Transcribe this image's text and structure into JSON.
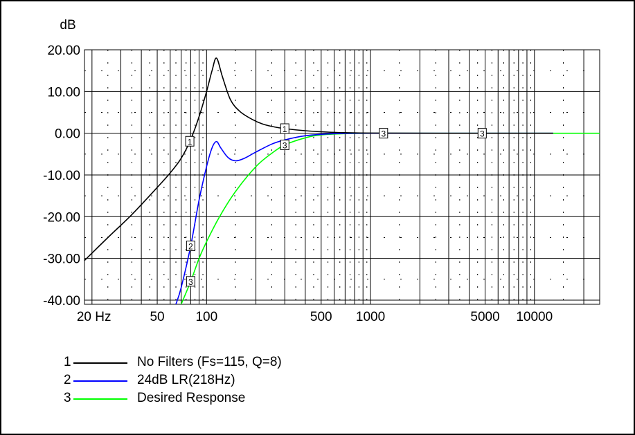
{
  "chart_data": {
    "type": "line",
    "ylabel": "dB",
    "x_scale": "log",
    "xlim": [
      18,
      25000
    ],
    "ylim": [
      -41,
      20
    ],
    "y_ticks": [
      {
        "v": 20,
        "label": "20.00"
      },
      {
        "v": 10,
        "label": "10.00"
      },
      {
        "v": 0,
        "label": "0.00"
      },
      {
        "v": -10,
        "label": "-10.00"
      },
      {
        "v": -20,
        "label": "-20.00"
      },
      {
        "v": -30,
        "label": "-30.00"
      },
      {
        "v": -40,
        "label": "-40.00"
      }
    ],
    "x_ticks": [
      {
        "v": 20,
        "label": "20 Hz"
      },
      {
        "v": 50,
        "label": "50"
      },
      {
        "v": 100,
        "label": "100"
      },
      {
        "v": 500,
        "label": "500"
      },
      {
        "v": 1000,
        "label": "1000"
      },
      {
        "v": 5000,
        "label": "5000"
      },
      {
        "v": 10000,
        "label": "10000"
      }
    ],
    "grid": true,
    "legend_position": "bottom-left",
    "series": [
      {
        "id": "1",
        "name": "No Filters (Fs=115, Q=8)",
        "color": "#000000",
        "points": [
          [
            18,
            -30.5
          ],
          [
            25,
            -25
          ],
          [
            35,
            -19.5
          ],
          [
            50,
            -13
          ],
          [
            60,
            -9.5
          ],
          [
            70,
            -6
          ],
          [
            80,
            -1.5
          ],
          [
            90,
            4
          ],
          [
            100,
            10
          ],
          [
            108,
            15
          ],
          [
            115,
            18
          ],
          [
            125,
            13.5
          ],
          [
            140,
            8
          ],
          [
            160,
            5.2
          ],
          [
            190,
            3.3
          ],
          [
            220,
            2.2
          ],
          [
            260,
            1.5
          ],
          [
            300,
            1.1
          ],
          [
            400,
            0.6
          ],
          [
            600,
            0.2
          ],
          [
            1000,
            0.05
          ],
          [
            3000,
            0
          ],
          [
            13000,
            0
          ]
        ],
        "markers": [
          79,
          300
        ]
      },
      {
        "id": "2",
        "name": "24dB LR(218Hz)",
        "color": "#0000ff",
        "points": [
          [
            65,
            -41
          ],
          [
            70,
            -37
          ],
          [
            80,
            -27
          ],
          [
            90,
            -16
          ],
          [
            100,
            -8
          ],
          [
            108,
            -3.5
          ],
          [
            115,
            -2
          ],
          [
            122,
            -3.5
          ],
          [
            135,
            -5.8
          ],
          [
            150,
            -6.6
          ],
          [
            170,
            -6
          ],
          [
            200,
            -4.5
          ],
          [
            250,
            -2.6
          ],
          [
            300,
            -1.6
          ],
          [
            400,
            -0.6
          ],
          [
            600,
            -0.1
          ],
          [
            1000,
            0
          ],
          [
            3000,
            0
          ],
          [
            13000,
            0
          ]
        ],
        "markers": [
          80
        ]
      },
      {
        "id": "3",
        "name": "Desired Response",
        "color": "#00ff00",
        "points": [
          [
            70,
            -41
          ],
          [
            80,
            -35.5
          ],
          [
            90,
            -30
          ],
          [
            100,
            -26
          ],
          [
            120,
            -20
          ],
          [
            150,
            -14
          ],
          [
            200,
            -8
          ],
          [
            250,
            -4.8
          ],
          [
            300,
            -2.8
          ],
          [
            400,
            -1.1
          ],
          [
            500,
            -0.4
          ],
          [
            700,
            -0.1
          ],
          [
            1000,
            0
          ],
          [
            5000,
            0
          ],
          [
            25000,
            0
          ]
        ],
        "markers": [
          80,
          300,
          1200,
          4800
        ]
      }
    ]
  }
}
